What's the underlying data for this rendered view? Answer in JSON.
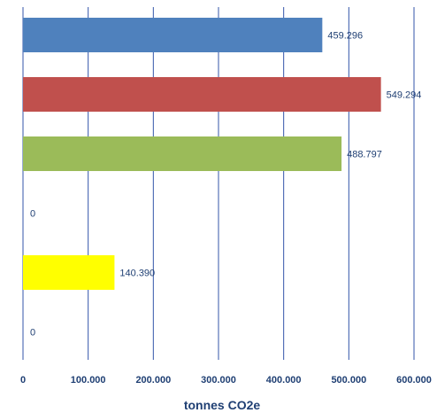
{
  "chart_data": {
    "type": "bar",
    "orientation": "horizontal",
    "xlabel": "tonnes CO2e",
    "xlim": [
      0,
      600000
    ],
    "xticks": [
      0,
      100000,
      200000,
      300000,
      400000,
      500000,
      600000
    ],
    "xtick_labels": [
      "0",
      "100.000",
      "200.000",
      "300.000",
      "400.000",
      "500.000",
      "600.000"
    ],
    "grid": "vertical",
    "bars": [
      {
        "value": 459296,
        "label": "459.296",
        "color": "#4f81bd"
      },
      {
        "value": 549294,
        "label": "549.294",
        "color": "#c0504d"
      },
      {
        "value": 488797,
        "label": "488.797",
        "color": "#9bbb59"
      },
      {
        "value": 0,
        "label": "0",
        "color": "#8064a2"
      },
      {
        "value": 140390,
        "label": "140.390",
        "color": "#ffff00"
      },
      {
        "value": 0,
        "label": "0",
        "color": "#4bacc6"
      }
    ],
    "colors": {
      "grid": "#3355aa",
      "text": "#1f3f73"
    }
  }
}
